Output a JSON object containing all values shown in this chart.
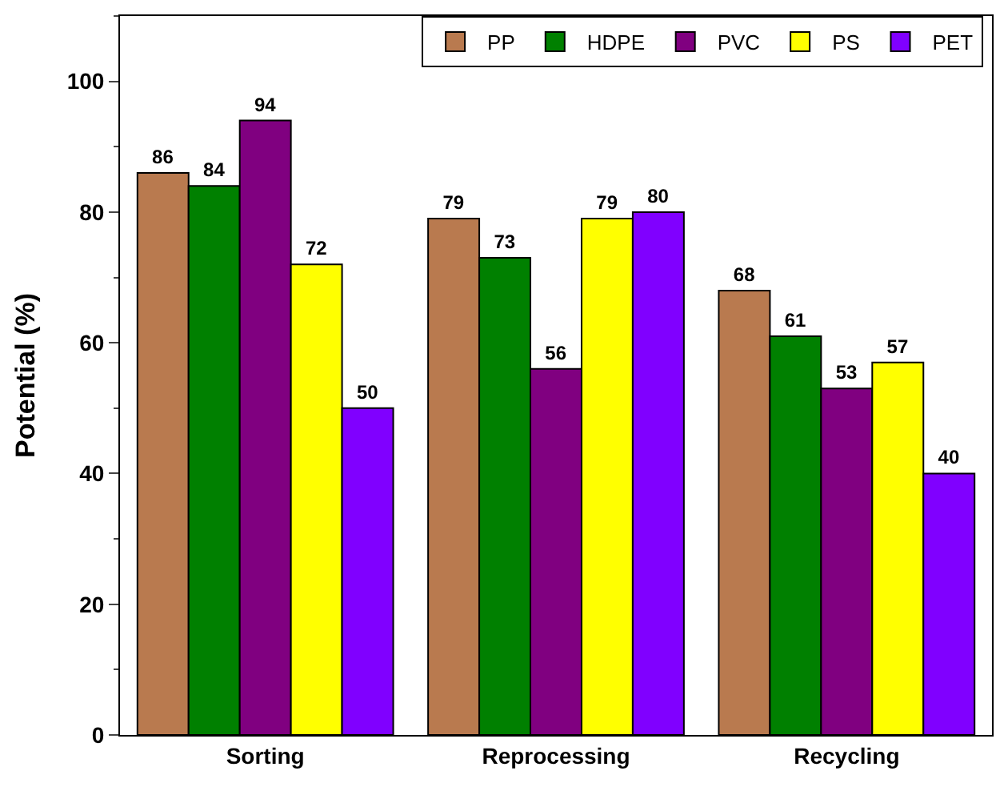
{
  "chart_data": {
    "type": "bar",
    "ylabel": "Potential (%)",
    "categories": [
      "Sorting",
      "Reprocessing",
      "Recycling"
    ],
    "series": [
      {
        "name": "PP",
        "color": "#b97a4f",
        "values": [
          86,
          79,
          68
        ]
      },
      {
        "name": "HDPE",
        "color": "#008000",
        "values": [
          84,
          73,
          61
        ]
      },
      {
        "name": "PVC",
        "color": "#800080",
        "values": [
          94,
          56,
          53
        ]
      },
      {
        "name": "PS",
        "color": "#ffff00",
        "values": [
          72,
          79,
          57
        ]
      },
      {
        "name": "PET",
        "color": "#8000ff",
        "values": [
          50,
          80,
          40
        ]
      }
    ],
    "ylim": [
      0,
      110
    ],
    "yticks": [
      0,
      20,
      40,
      60,
      80,
      100
    ],
    "data_labels": true,
    "legend": "top right"
  }
}
